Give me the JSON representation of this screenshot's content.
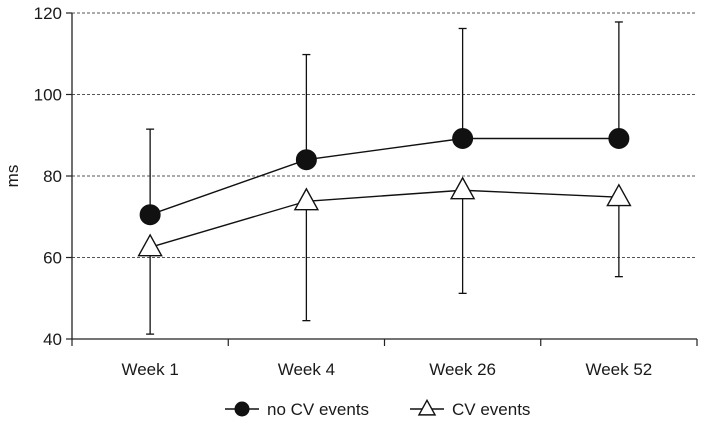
{
  "chart_data": {
    "type": "line",
    "title": "",
    "xlabel": "",
    "ylabel": "ms",
    "ylim": [
      40,
      120
    ],
    "yticks": [
      40,
      60,
      80,
      100,
      120
    ],
    "grid": "horizontal dashed",
    "legend_position": "bottom",
    "categories": [
      "Week 1",
      "Week 4",
      "Week 26",
      "Week 52"
    ],
    "series": [
      {
        "name": "no CV events",
        "marker": "filled-circle",
        "values": [
          70.5,
          84,
          89.2,
          89.2
        ],
        "error_upper": [
          91.5,
          109.8,
          116.2,
          117.8
        ],
        "error_lower": [
          70.5,
          84,
          89.2,
          89.2
        ]
      },
      {
        "name": "CV events",
        "marker": "open-triangle",
        "values": [
          62.5,
          73.8,
          76.5,
          74.8
        ],
        "error_upper": [
          62.5,
          73.8,
          76.5,
          74.8
        ],
        "error_lower": [
          41.2,
          44.5,
          51.2,
          55.3
        ]
      }
    ]
  }
}
